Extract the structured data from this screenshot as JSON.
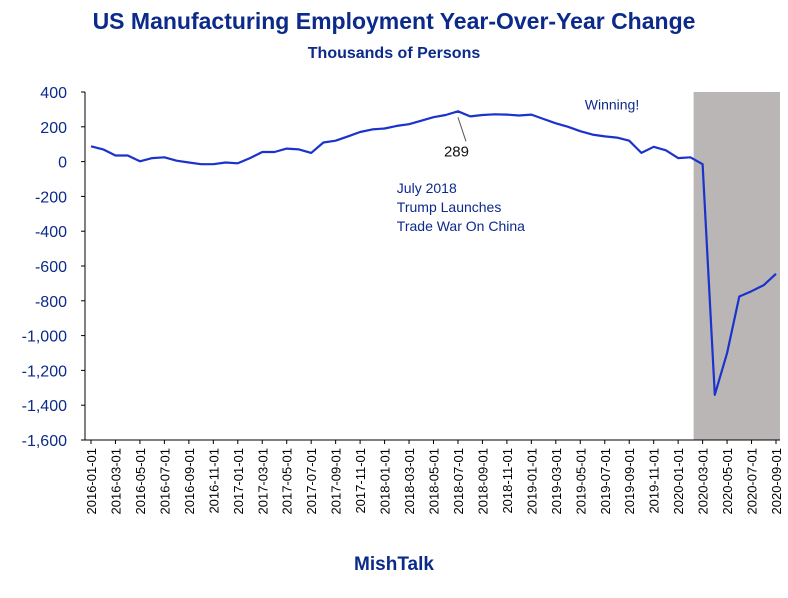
{
  "header": {
    "title": "US Manufacturing Employment Year-Over-Year Change",
    "subtitle": "Thousands of Persons"
  },
  "footer": {
    "brand": "MishTalk"
  },
  "colors": {
    "line": "#1a33cc",
    "text": "#0b2a8a",
    "recession_shade": "#bbb6b6"
  },
  "chart_data": {
    "type": "line",
    "title": "US Manufacturing Employment Year-Over-Year Change",
    "subtitle": "Thousands of Persons",
    "ylim": [
      -1600,
      400
    ],
    "y_ticks": [
      400,
      200,
      0,
      -200,
      -400,
      -600,
      -800,
      -1000,
      -1200,
      -1400,
      -1600
    ],
    "y_tick_labels": [
      "400",
      "200",
      "0",
      "-200",
      "-400",
      "-600",
      "-800",
      "-1,000",
      "-1,200",
      "-1,400",
      "-1,600"
    ],
    "x_tick_labels": [
      "2016-01-01",
      "2016-03-01",
      "2016-05-01",
      "2016-07-01",
      "2016-09-01",
      "2016-11-01",
      "2017-01-01",
      "2017-03-01",
      "2017-05-01",
      "2017-07-01",
      "2017-09-01",
      "2017-11-01",
      "2018-01-01",
      "2018-03-01",
      "2018-05-01",
      "2018-07-01",
      "2018-09-01",
      "2018-11-01",
      "2019-01-01",
      "2019-03-01",
      "2019-05-01",
      "2019-07-01",
      "2019-09-01",
      "2019-11-01",
      "2020-01-01",
      "2020-03-01",
      "2020-05-01",
      "2020-07-01",
      "2020-09-01"
    ],
    "grid": false,
    "shaded_region": {
      "from": "2020-03-01",
      "to": "2020-09-01",
      "label": ""
    },
    "series": [
      {
        "x": [
          "2016-01-01",
          "2016-02-01",
          "2016-03-01",
          "2016-04-01",
          "2016-05-01",
          "2016-06-01",
          "2016-07-01",
          "2016-08-01",
          "2016-09-01",
          "2016-10-01",
          "2016-11-01",
          "2016-12-01",
          "2017-01-01",
          "2017-02-01",
          "2017-03-01",
          "2017-04-01",
          "2017-05-01",
          "2017-06-01",
          "2017-07-01",
          "2017-08-01",
          "2017-09-01",
          "2017-10-01",
          "2017-11-01",
          "2017-12-01",
          "2018-01-01",
          "2018-02-01",
          "2018-03-01",
          "2018-04-01",
          "2018-05-01",
          "2018-06-01",
          "2018-07-01",
          "2018-08-01",
          "2018-09-01",
          "2018-10-01",
          "2018-11-01",
          "2018-12-01",
          "2019-01-01",
          "2019-02-01",
          "2019-03-01",
          "2019-04-01",
          "2019-05-01",
          "2019-06-01",
          "2019-07-01",
          "2019-08-01",
          "2019-09-01",
          "2019-10-01",
          "2019-11-01",
          "2019-12-01",
          "2020-01-01",
          "2020-02-01",
          "2020-03-01",
          "2020-04-01",
          "2020-05-01",
          "2020-06-01",
          "2020-07-01",
          "2020-08-01",
          "2020-09-01"
        ],
        "values": [
          88,
          70,
          35,
          35,
          2,
          20,
          25,
          5,
          -5,
          -15,
          -15,
          -5,
          -10,
          20,
          55,
          55,
          75,
          70,
          50,
          110,
          120,
          145,
          170,
          185,
          190,
          205,
          215,
          235,
          255,
          268,
          289,
          260,
          268,
          272,
          270,
          265,
          270,
          245,
          220,
          200,
          175,
          155,
          145,
          138,
          120,
          50,
          85,
          65,
          20,
          25,
          -15,
          -1340,
          -1100,
          -775,
          -745,
          -710,
          -645
        ]
      }
    ],
    "annotations": [
      {
        "text": "Winning!",
        "x": "2019-07-01",
        "y": 300
      },
      {
        "text": "289",
        "x": "2018-07-01",
        "y": 289
      },
      {
        "text": "July 2018",
        "x": "2018-02-01",
        "y": -180
      },
      {
        "text": "Trump Launches",
        "x": "2018-02-01",
        "y": -290
      },
      {
        "text": "Trade War On China",
        "x": "2018-02-01",
        "y": -400
      }
    ]
  }
}
